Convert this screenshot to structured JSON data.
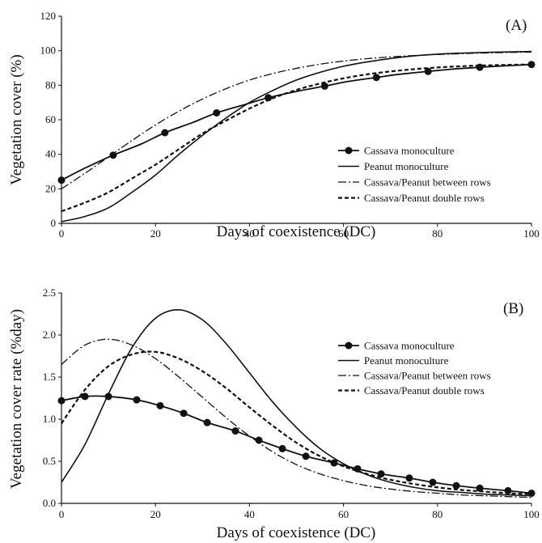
{
  "chart_data": [
    {
      "panel_label": "(A)",
      "type": "line",
      "xlabel": "Days of coexistence (DC)",
      "ylabel": "Vegetation cover (%)",
      "xlim": [
        0,
        100
      ],
      "ylim": [
        0,
        120
      ],
      "xticks": [
        "0",
        "20",
        "40",
        "60",
        "80",
        "100"
      ],
      "yticks": [
        "0",
        "20",
        "40",
        "60",
        "80",
        "100",
        "120"
      ],
      "grid": false,
      "legend_position": "right",
      "series": [
        {
          "name": "Cassava monoculture",
          "style": "solid-markers",
          "x": [
            0,
            5,
            11,
            17,
            22,
            28,
            33,
            39,
            44,
            50,
            56,
            61,
            67,
            72,
            78,
            83,
            89,
            94,
            100
          ],
          "y": [
            25,
            32,
            39.5,
            46,
            52.5,
            58.5,
            64,
            68.8,
            72.8,
            76.4,
            79.5,
            82.2,
            84.5,
            86.4,
            88,
            89.3,
            90.4,
            91.2,
            92
          ],
          "marker_x": [
            0,
            11,
            22,
            33,
            44,
            56,
            67,
            78,
            89,
            100
          ]
        },
        {
          "name": "Peanut monoculture",
          "style": "solid",
          "x": [
            0,
            5,
            10,
            15,
            20,
            25,
            30,
            35,
            40,
            45,
            50,
            55,
            60,
            65,
            70,
            75,
            80,
            85,
            90,
            95,
            100
          ],
          "y": [
            1,
            4,
            9,
            18,
            28,
            40,
            51,
            61,
            70,
            77,
            83,
            87.5,
            91,
            93.5,
            95.5,
            97,
            98,
            98.6,
            99,
            99.3,
            99.5
          ]
        },
        {
          "name": "Cassava/Peanut between rows",
          "style": "dashdot",
          "x": [
            0,
            5,
            10,
            15,
            20,
            25,
            30,
            35,
            40,
            45,
            50,
            55,
            60,
            65,
            70,
            75,
            80,
            85,
            90,
            95,
            100
          ],
          "y": [
            20,
            29,
            38.5,
            48,
            57,
            65,
            72,
            78,
            83,
            86.8,
            89.8,
            92.2,
            94,
            95.4,
            96.4,
            97.2,
            97.8,
            98.3,
            98.7,
            99,
            99.2
          ]
        },
        {
          "name": "Cassava/Peanut double rows",
          "style": "dashed",
          "x": [
            0,
            5,
            10,
            15,
            20,
            25,
            30,
            35,
            40,
            45,
            50,
            55,
            60,
            65,
            70,
            75,
            80,
            85,
            90,
            95,
            100
          ],
          "y": [
            7,
            12,
            18,
            26,
            34,
            43,
            52,
            59.5,
            66.5,
            72.5,
            77.3,
            81,
            84,
            86.3,
            88,
            89.3,
            90.3,
            91,
            91.5,
            91.8,
            92
          ]
        }
      ]
    },
    {
      "panel_label": "(B)",
      "type": "line",
      "xlabel": "Days of coexistence (DC)",
      "ylabel": "Vegetation cover rate (%day)",
      "xlim": [
        0,
        100
      ],
      "ylim": [
        0,
        2.5
      ],
      "xticks": [
        "0",
        "20",
        "40",
        "60",
        "80",
        "100"
      ],
      "yticks": [
        "0.0",
        "0.5",
        "1.0",
        "1.5",
        "2.0",
        "2.5"
      ],
      "grid": false,
      "legend_position": "right",
      "series": [
        {
          "name": "Cassava monoculture",
          "style": "solid-markers",
          "x": [
            0,
            5,
            10,
            16,
            21,
            26,
            31,
            37,
            42,
            47,
            52,
            58,
            63,
            68,
            74,
            79,
            84,
            89,
            95,
            100
          ],
          "y": [
            1.22,
            1.27,
            1.27,
            1.23,
            1.16,
            1.07,
            0.96,
            0.86,
            0.75,
            0.65,
            0.56,
            0.48,
            0.41,
            0.35,
            0.3,
            0.25,
            0.21,
            0.18,
            0.15,
            0.12
          ],
          "marker_x": [
            0,
            5,
            10,
            16,
            21,
            26,
            31,
            37,
            42,
            47,
            52,
            58,
            63,
            68,
            74,
            79,
            84,
            89,
            95,
            100
          ]
        },
        {
          "name": "Peanut monoculture",
          "style": "solid",
          "x": [
            0,
            5,
            10,
            15,
            20,
            25,
            30,
            35,
            40,
            45,
            50,
            55,
            60,
            65,
            70,
            75,
            80,
            85,
            90,
            95,
            100
          ],
          "y": [
            0.25,
            0.7,
            1.3,
            1.85,
            2.2,
            2.3,
            2.18,
            1.9,
            1.55,
            1.2,
            0.9,
            0.65,
            0.47,
            0.34,
            0.25,
            0.19,
            0.15,
            0.13,
            0.11,
            0.1,
            0.09
          ]
        },
        {
          "name": "Cassava/Peanut between rows",
          "style": "dashdot",
          "x": [
            0,
            5,
            10,
            15,
            20,
            25,
            30,
            35,
            40,
            45,
            50,
            55,
            60,
            65,
            70,
            75,
            80,
            85,
            90,
            95,
            100
          ],
          "y": [
            1.65,
            1.88,
            1.95,
            1.88,
            1.72,
            1.5,
            1.26,
            1.02,
            0.8,
            0.61,
            0.46,
            0.35,
            0.27,
            0.21,
            0.17,
            0.14,
            0.12,
            0.1,
            0.09,
            0.08,
            0.07
          ]
        },
        {
          "name": "Cassava/Peanut double rows",
          "style": "dashed",
          "x": [
            0,
            5,
            10,
            15,
            20,
            25,
            30,
            35,
            40,
            45,
            50,
            55,
            60,
            65,
            70,
            75,
            80,
            85,
            90,
            95,
            100
          ],
          "y": [
            0.95,
            1.35,
            1.63,
            1.77,
            1.8,
            1.72,
            1.57,
            1.37,
            1.14,
            0.92,
            0.72,
            0.56,
            0.44,
            0.35,
            0.28,
            0.23,
            0.19,
            0.16,
            0.14,
            0.12,
            0.11
          ]
        }
      ]
    }
  ]
}
